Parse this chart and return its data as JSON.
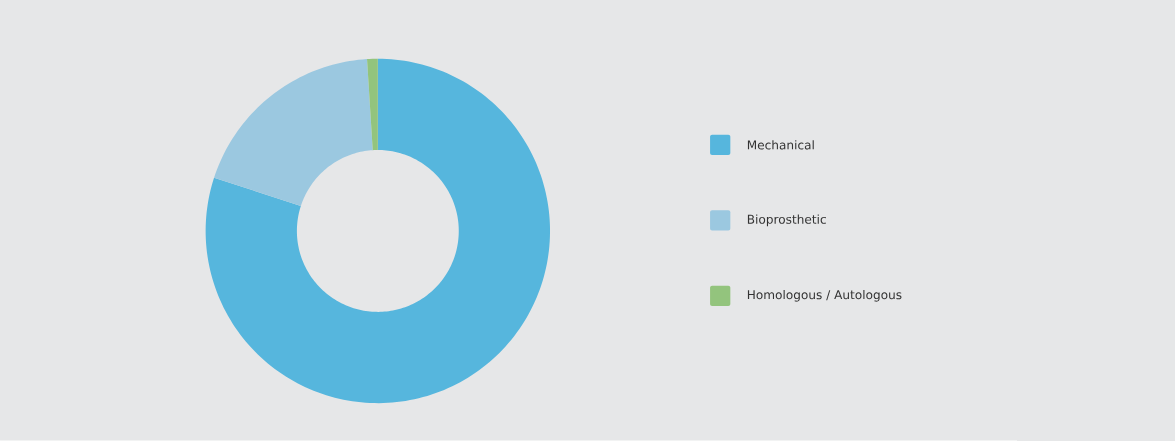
{
  "chart_data": {
    "type": "donut",
    "categories": [
      "Mechanical",
      "Bioprosthetic",
      "Homologous / Autologous"
    ],
    "values": [
      80,
      19,
      1
    ],
    "colors": [
      "#56b6dd",
      "#9bc8e0",
      "#93c47d"
    ],
    "legend": "right"
  }
}
